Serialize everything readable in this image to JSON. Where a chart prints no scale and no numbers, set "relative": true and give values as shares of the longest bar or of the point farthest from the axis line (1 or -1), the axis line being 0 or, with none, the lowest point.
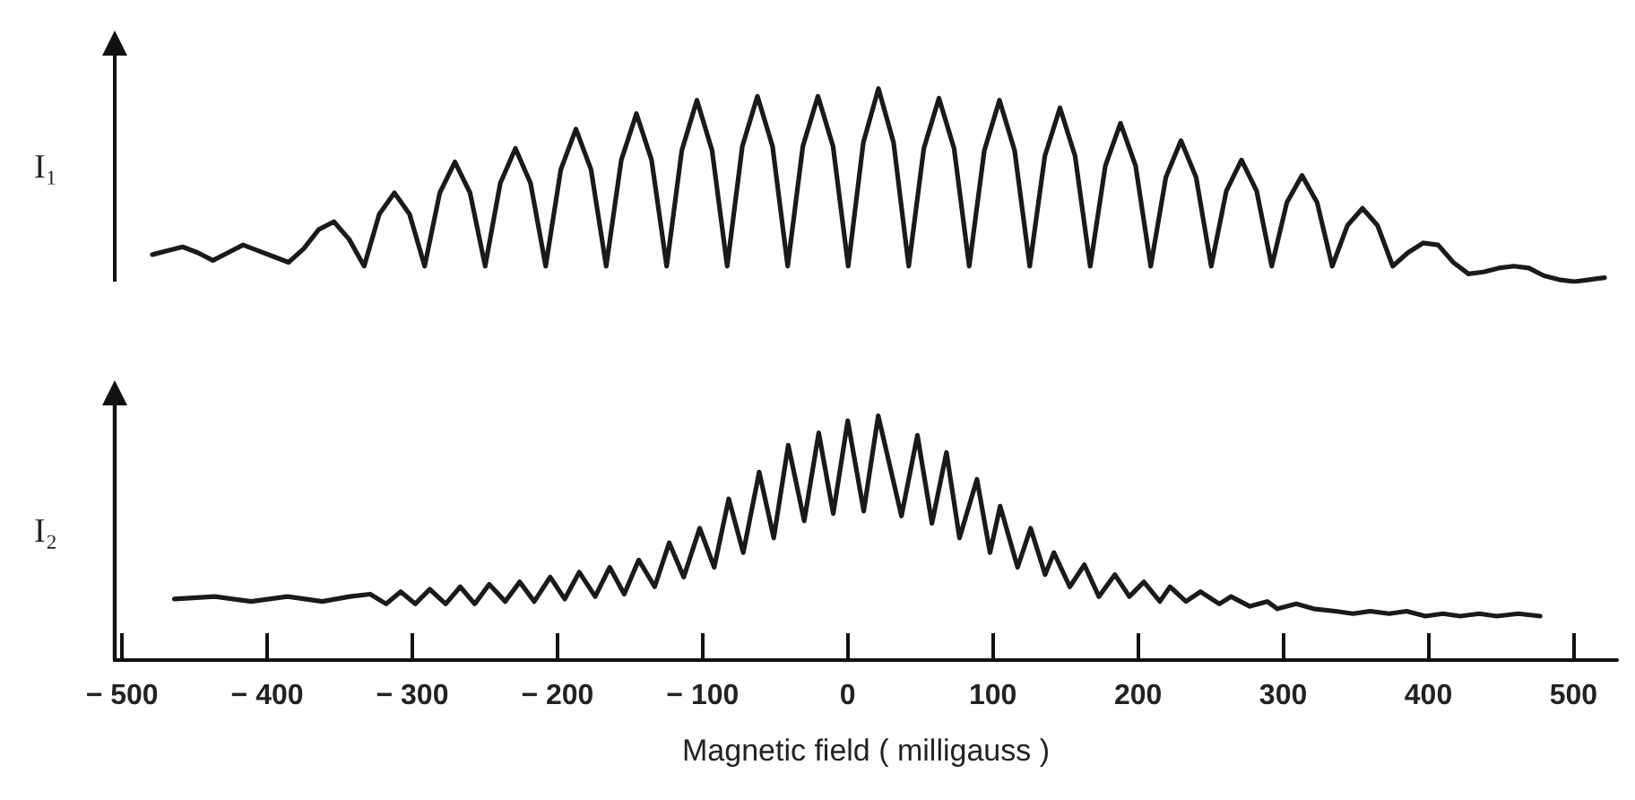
{
  "chart_data": [
    {
      "type": "line",
      "ylabel": "I₁",
      "relative": true,
      "tick_labels": false,
      "color": "#1a1a1a",
      "categories": [
        null,
        null,
        null,
        null,
        null,
        null,
        null,
        null,
        null,
        null,
        null,
        null,
        null,
        null,
        null,
        null,
        null,
        null,
        null,
        null,
        null,
        null,
        null,
        null,
        null,
        null,
        null,
        null,
        null,
        null,
        null,
        null,
        null,
        null,
        null,
        null,
        null,
        null,
        null,
        null,
        null,
        null,
        null,
        null,
        null,
        null,
        null,
        null,
        null,
        null,
        null,
        null,
        null,
        null,
        null,
        null,
        null,
        null,
        null,
        null,
        null,
        null,
        null,
        null,
        null,
        null,
        null,
        null,
        null,
        null,
        null,
        null,
        null,
        null,
        null,
        null,
        null,
        null,
        null,
        null,
        null,
        null,
        null,
        null,
        null,
        null,
        null,
        null,
        null,
        null,
        null,
        null,
        null,
        null,
        null,
        null,
        null
      ],
      "values": [
        0.14,
        0.16,
        0.18,
        0.15,
        0.11,
        0.15,
        0.19,
        0.16,
        0.13,
        0.1,
        0.17,
        0.27,
        0.31,
        0.22,
        0.08,
        0.35,
        0.46,
        0.35,
        0.08,
        0.46,
        0.62,
        0.46,
        0.08,
        0.51,
        0.69,
        0.51,
        0.08,
        0.58,
        0.79,
        0.58,
        0.08,
        0.63,
        0.87,
        0.63,
        0.08,
        0.68,
        0.94,
        0.68,
        0.08,
        0.7,
        0.96,
        0.7,
        0.08,
        0.7,
        0.96,
        0.7,
        0.08,
        0.72,
        1.0,
        0.72,
        0.08,
        0.69,
        0.95,
        0.69,
        0.08,
        0.68,
        0.94,
        0.68,
        0.08,
        0.65,
        0.9,
        0.65,
        0.08,
        0.6,
        0.82,
        0.6,
        0.08,
        0.54,
        0.73,
        0.54,
        0.08,
        0.47,
        0.63,
        0.47,
        0.08,
        0.41,
        0.55,
        0.41,
        0.08,
        0.29,
        0.38,
        0.29,
        0.08,
        0.15,
        0.2,
        0.19,
        0.1,
        0.04,
        0.05,
        0.07,
        0.08,
        0.07,
        0.03,
        0.01,
        0.0,
        0.01,
        0.02
      ]
    },
    {
      "type": "line",
      "ylabel": "I₂",
      "xlabel": "Magnetic field ( milligauss )",
      "relative": true,
      "tick_labels": "x",
      "xlim": [
        -505,
        530
      ],
      "xticks": [
        -500,
        -400,
        -300,
        -200,
        -100,
        0,
        100,
        200,
        300,
        400,
        500
      ],
      "color": "#1a1a1a",
      "x": [
        -464,
        -436,
        -411,
        -386,
        -362,
        -343,
        -329,
        -318,
        -308,
        -298,
        -288,
        -277,
        -267,
        -257,
        -247,
        -236,
        -226,
        -216,
        -205,
        -195,
        -185,
        -174,
        -164,
        -154,
        -144,
        -133,
        -123,
        -113,
        -102,
        -92,
        -82,
        -72,
        -61,
        -51,
        -41,
        -30,
        -20,
        -10,
        0,
        11,
        21,
        37,
        48,
        58,
        68,
        77,
        89,
        98,
        105,
        117,
        126,
        136,
        142,
        153,
        163,
        173,
        184,
        194,
        204,
        215,
        222,
        233,
        243,
        256,
        264,
        277,
        289,
        296,
        309,
        321,
        336,
        348,
        360,
        373,
        385,
        398,
        410,
        422,
        435,
        447,
        462,
        477
      ],
      "values": [
        0.25,
        0.26,
        0.24,
        0.26,
        0.24,
        0.26,
        0.27,
        0.23,
        0.28,
        0.23,
        0.29,
        0.23,
        0.3,
        0.23,
        0.31,
        0.24,
        0.32,
        0.24,
        0.34,
        0.25,
        0.36,
        0.26,
        0.38,
        0.27,
        0.41,
        0.3,
        0.48,
        0.34,
        0.54,
        0.38,
        0.66,
        0.44,
        0.77,
        0.5,
        0.88,
        0.57,
        0.93,
        0.6,
        0.98,
        0.61,
        1.0,
        0.59,
        0.92,
        0.56,
        0.85,
        0.5,
        0.74,
        0.44,
        0.63,
        0.38,
        0.54,
        0.35,
        0.44,
        0.3,
        0.39,
        0.26,
        0.35,
        0.26,
        0.32,
        0.24,
        0.3,
        0.24,
        0.28,
        0.23,
        0.26,
        0.22,
        0.24,
        0.21,
        0.23,
        0.21,
        0.2,
        0.19,
        0.2,
        0.19,
        0.2,
        0.18,
        0.19,
        0.18,
        0.19,
        0.18,
        0.19,
        0.18
      ]
    }
  ]
}
